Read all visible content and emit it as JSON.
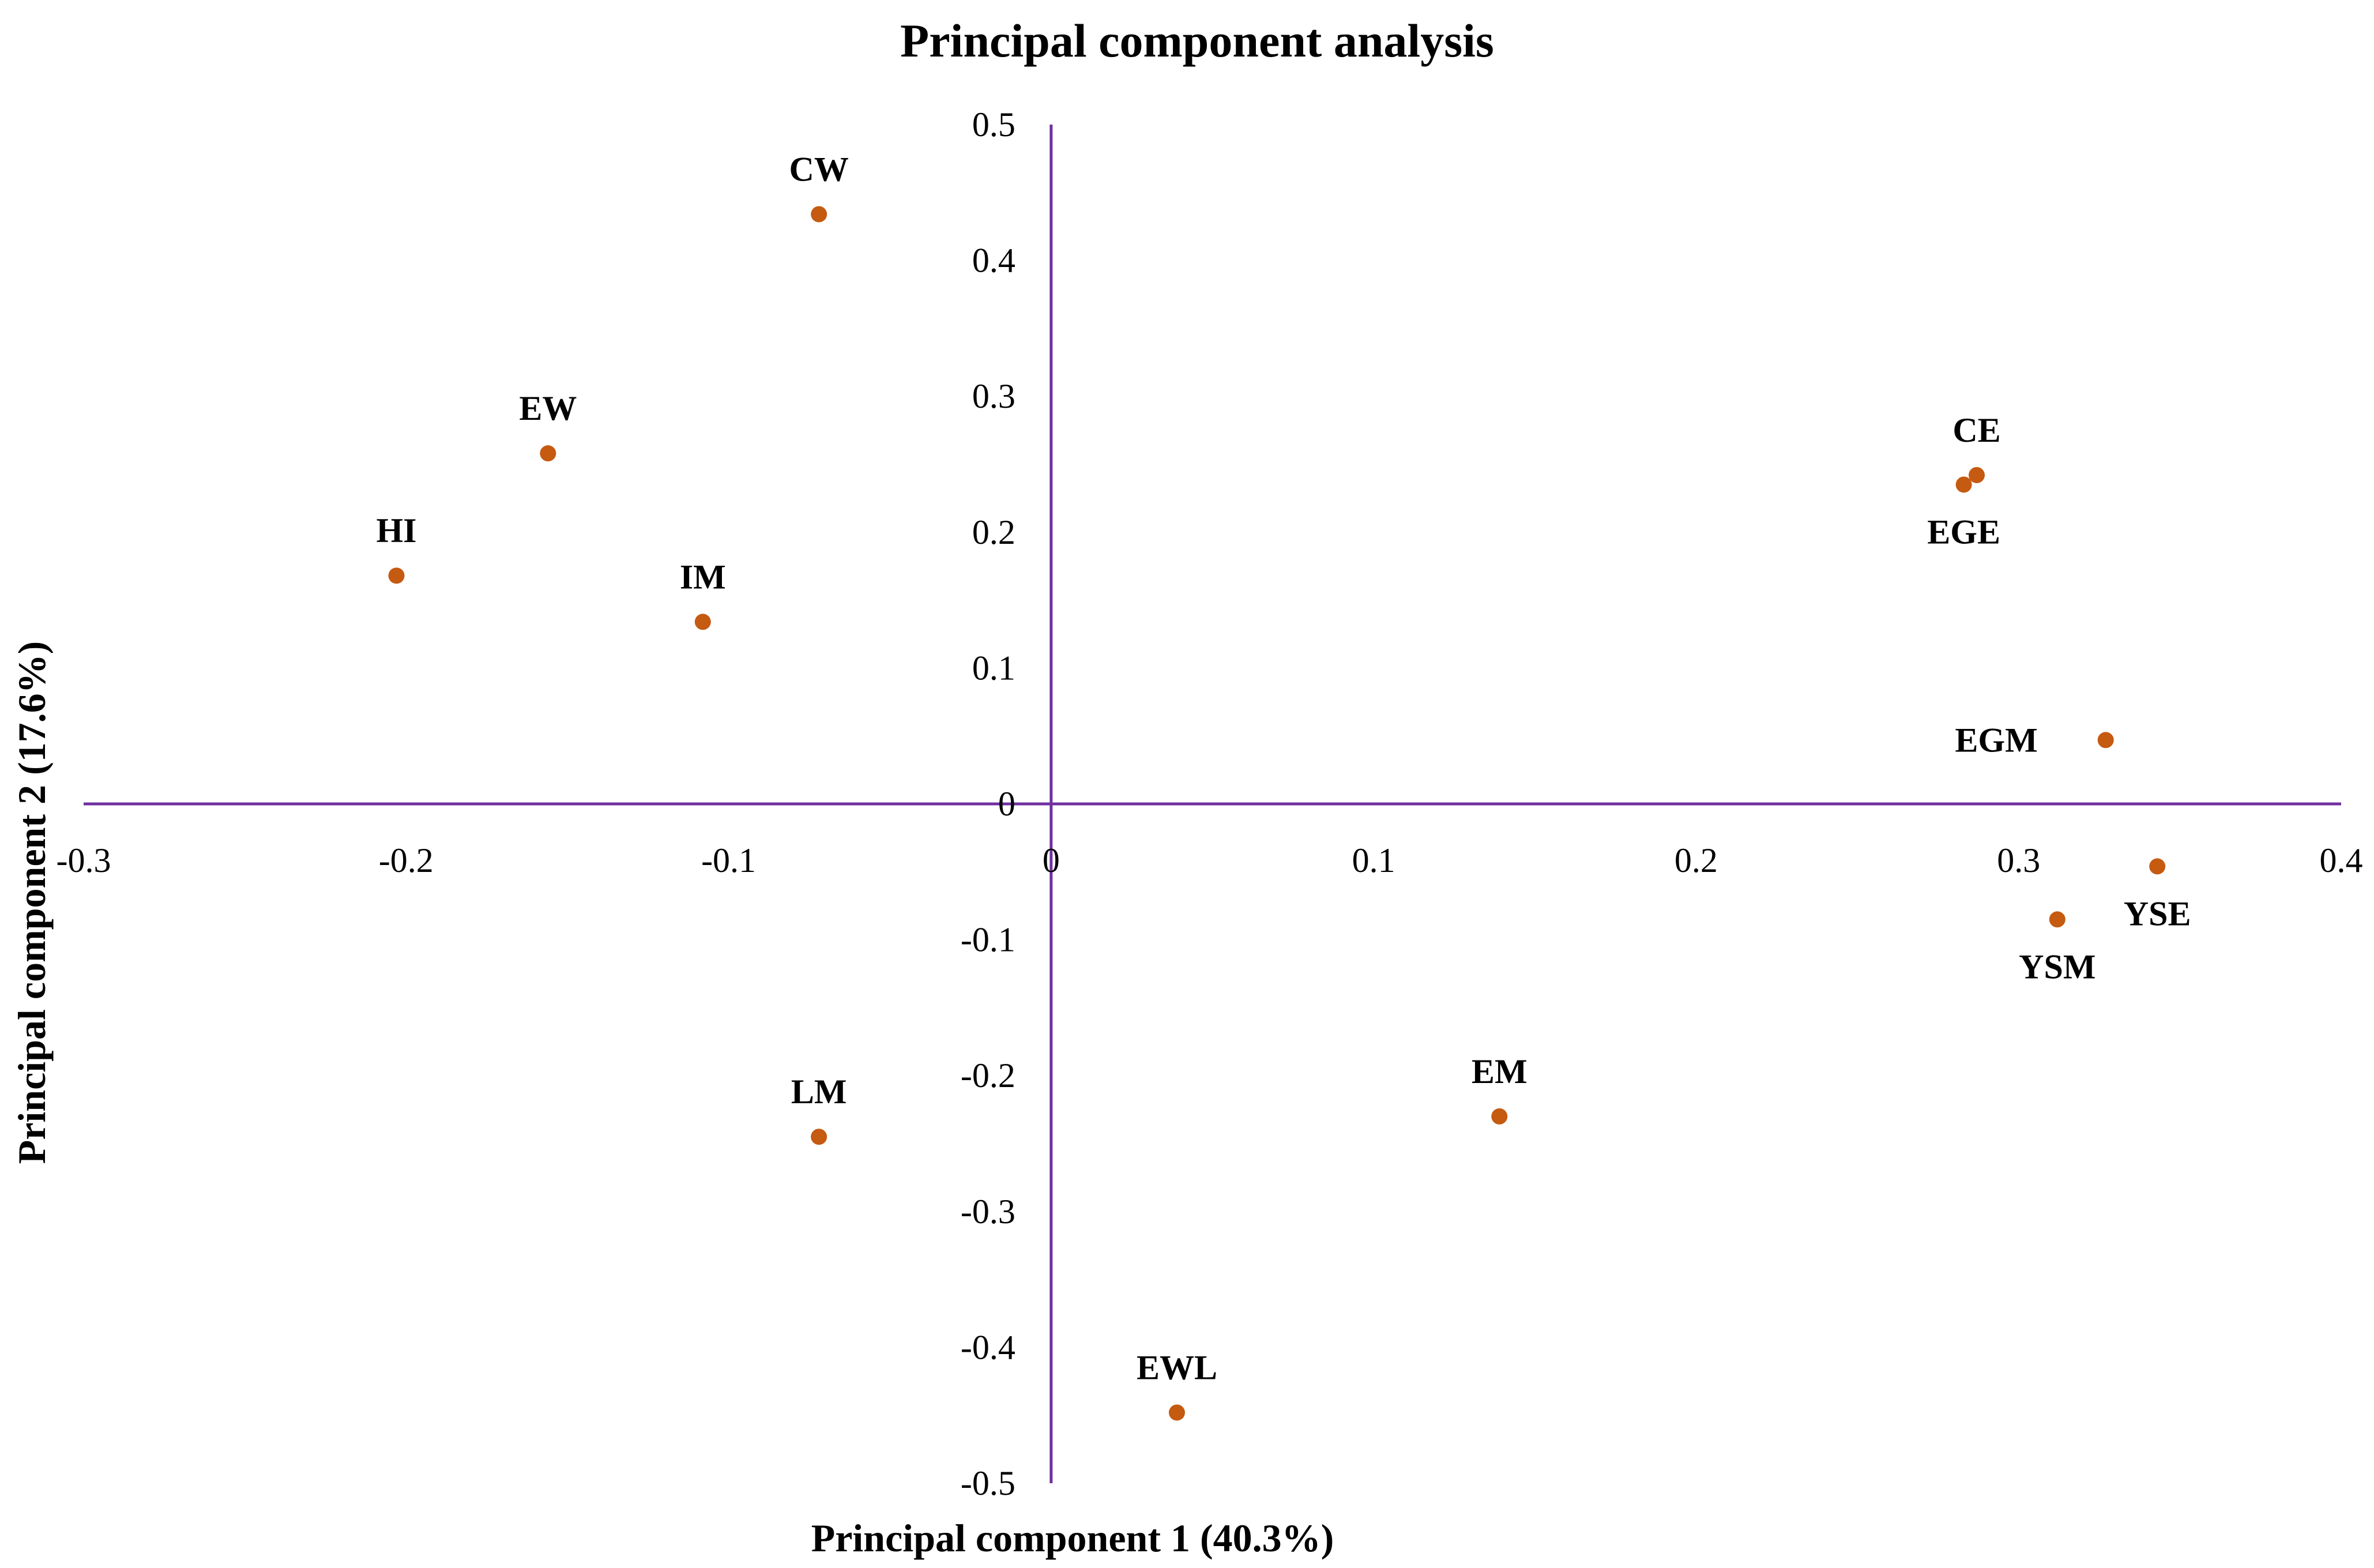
{
  "chart_data": {
    "type": "scatter",
    "title": "Principal component analysis",
    "xlabel": "Principal component 1 (40.3%)",
    "ylabel": "Principal component  2 (17.6%)",
    "xlim": [
      -0.3,
      0.4
    ],
    "ylim": [
      -0.5,
      0.5
    ],
    "x_ticks": [
      {
        "value": -0.3,
        "label": "-0.3"
      },
      {
        "value": -0.2,
        "label": "-0.2"
      },
      {
        "value": -0.1,
        "label": "-0.1"
      },
      {
        "value": 0,
        "label": "0"
      },
      {
        "value": 0.1,
        "label": "0.1"
      },
      {
        "value": 0.2,
        "label": "0.2"
      },
      {
        "value": 0.3,
        "label": "0.3"
      },
      {
        "value": 0.4,
        "label": "0.4"
      }
    ],
    "y_ticks": [
      {
        "value": 0.5,
        "label": "0.5"
      },
      {
        "value": 0.4,
        "label": "0.4"
      },
      {
        "value": 0.3,
        "label": "0.3"
      },
      {
        "value": 0.2,
        "label": "0.2"
      },
      {
        "value": 0.1,
        "label": "0.1"
      },
      {
        "value": 0,
        "label": "0"
      },
      {
        "value": -0.1,
        "label": "-0.1"
      },
      {
        "value": -0.2,
        "label": "-0.2"
      },
      {
        "value": -0.3,
        "label": "-0.3"
      },
      {
        "value": -0.4,
        "label": "-0.4"
      },
      {
        "value": -0.5,
        "label": "-0.5"
      }
    ],
    "grid": false,
    "points": [
      {
        "label": "CW",
        "x": -0.072,
        "y": 0.434,
        "label_pos": "above"
      },
      {
        "label": "EW",
        "x": -0.156,
        "y": 0.258,
        "label_pos": "above"
      },
      {
        "label": "HI",
        "x": -0.203,
        "y": 0.168,
        "label_pos": "above"
      },
      {
        "label": "IM",
        "x": -0.108,
        "y": 0.134,
        "label_pos": "above"
      },
      {
        "label": "CE",
        "x": 0.287,
        "y": 0.242,
        "label_pos": "above"
      },
      {
        "label": "EGE",
        "x": 0.283,
        "y": 0.235,
        "label_pos": "below"
      },
      {
        "label": "EGM",
        "x": 0.327,
        "y": 0.047,
        "label_pos": "left"
      },
      {
        "label": "YSE",
        "x": 0.343,
        "y": -0.046,
        "label_pos": "below"
      },
      {
        "label": "YSM",
        "x": 0.312,
        "y": -0.085,
        "label_pos": "below"
      },
      {
        "label": "LM",
        "x": -0.072,
        "y": -0.245,
        "label_pos": "above"
      },
      {
        "label": "EM",
        "x": 0.139,
        "y": -0.23,
        "label_pos": "above"
      },
      {
        "label": "EWL",
        "x": 0.039,
        "y": -0.448,
        "label_pos": "above"
      }
    ]
  },
  "colors": {
    "axis": "#7030A0",
    "marker": "#C55A11",
    "text": "#000000"
  }
}
